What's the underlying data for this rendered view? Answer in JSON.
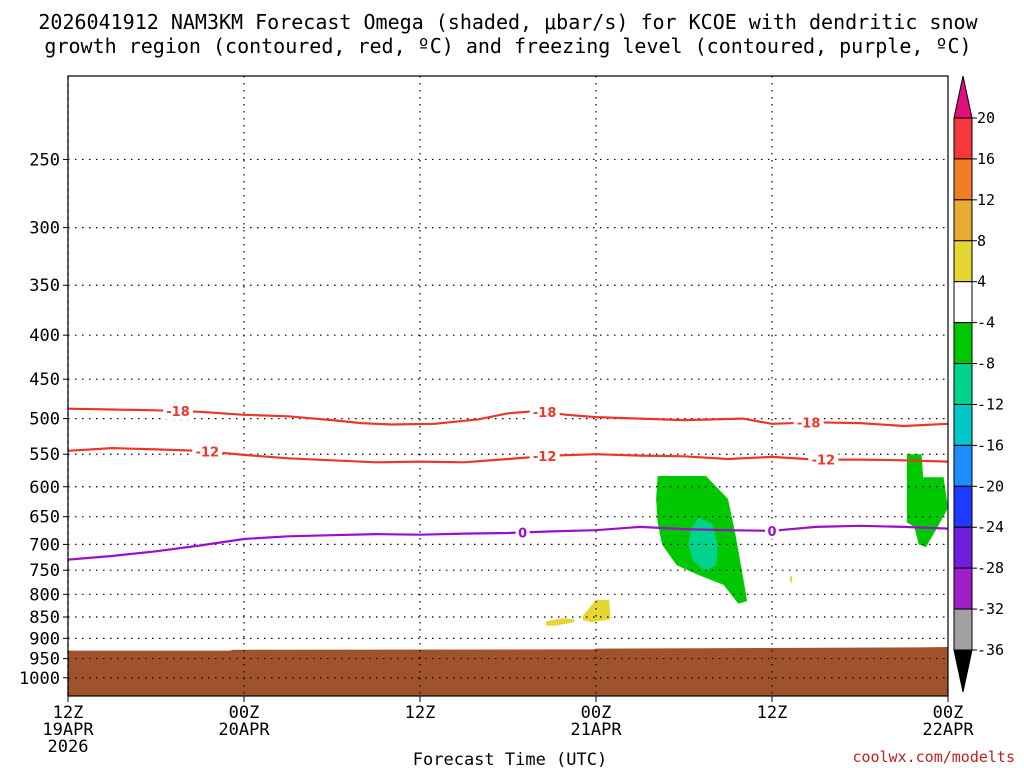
{
  "chart_data": {
    "type": "time-height cross section",
    "title_line1": "2026041912 NAM3KM Forecast Omega (shaded, μbar/s) for KCOE with dendritic snow",
    "title_line2": "growth region (contoured, red, ºC) and freezing level (contoured, purple, ºC)",
    "xlabel": "Forecast Time (UTC)",
    "credit": "coolwx.com/modelts",
    "x_range_hours": [
      0,
      60
    ],
    "x_ticks": [
      {
        "hour": 0,
        "line1": "12Z",
        "line2": "19APR",
        "line3": "2026"
      },
      {
        "hour": 12,
        "line1": "00Z",
        "line2": "20APR",
        "line3": ""
      },
      {
        "hour": 24,
        "line1": "12Z",
        "line2": "",
        "line3": ""
      },
      {
        "hour": 36,
        "line1": "00Z",
        "line2": "21APR",
        "line3": ""
      },
      {
        "hour": 48,
        "line1": "12Z",
        "line2": "",
        "line3": ""
      },
      {
        "hour": 60,
        "line1": "00Z",
        "line2": "22APR",
        "line3": ""
      }
    ],
    "y_range_hpa": [
      200,
      1050
    ],
    "y_ticks": [
      "250",
      "300",
      "350",
      "400",
      "450",
      "500",
      "550",
      "600",
      "650",
      "700",
      "750",
      "800",
      "850",
      "900",
      "950",
      "1000"
    ],
    "colorbar": {
      "labels": [
        "20",
        "16",
        "12",
        "8",
        "4",
        "-4",
        "-8",
        "-12",
        "-16",
        "-20",
        "-24",
        "-28",
        "-32",
        "-36"
      ],
      "colors": [
        "#f5383c",
        "#f07d28",
        "#e6ac34",
        "#e6d634",
        "#ffffff",
        "#00c800",
        "#00d38c",
        "#00c8c8",
        "#1e8cff",
        "#1e3cff",
        "#6e1edc",
        "#a01ec8",
        "#a0a0a0"
      ],
      "top_extend": "#e0107a",
      "bottom_extend": "#000000"
    },
    "contours": [
      {
        "label": "-18",
        "color": "#e8382c",
        "label_hours": [
          7.5,
          32.5,
          50.5
        ],
        "points": [
          [
            0,
            487
          ],
          [
            3,
            488
          ],
          [
            6,
            489
          ],
          [
            9,
            491
          ],
          [
            12,
            495
          ],
          [
            15,
            497
          ],
          [
            18,
            502
          ],
          [
            20,
            506
          ],
          [
            22,
            508
          ],
          [
            25,
            507
          ],
          [
            28,
            501
          ],
          [
            30,
            493
          ],
          [
            32,
            490
          ],
          [
            34,
            495
          ],
          [
            36,
            498
          ],
          [
            39,
            500
          ],
          [
            42,
            502
          ],
          [
            46,
            500
          ],
          [
            48,
            507
          ],
          [
            51,
            505
          ],
          [
            54,
            506
          ],
          [
            57,
            510
          ],
          [
            60,
            507
          ]
        ]
      },
      {
        "label": "-12",
        "color": "#e8382c",
        "label_hours": [
          9.5,
          32.5,
          51.5
        ],
        "points": [
          [
            0,
            545
          ],
          [
            3,
            541
          ],
          [
            6,
            543
          ],
          [
            9,
            545
          ],
          [
            12,
            551
          ],
          [
            15,
            556
          ],
          [
            18,
            559
          ],
          [
            21,
            562
          ],
          [
            24,
            561
          ],
          [
            27,
            562
          ],
          [
            30,
            557
          ],
          [
            33,
            552
          ],
          [
            36,
            550
          ],
          [
            39,
            552
          ],
          [
            42,
            553
          ],
          [
            45,
            557
          ],
          [
            48,
            554
          ],
          [
            51,
            558
          ],
          [
            54,
            558
          ],
          [
            57,
            559
          ],
          [
            60,
            561
          ]
        ]
      },
      {
        "label": "0",
        "color": "#9a10c8",
        "label_hours": [
          31,
          48
        ],
        "points": [
          [
            0,
            729
          ],
          [
            3,
            722
          ],
          [
            6,
            713
          ],
          [
            9,
            702
          ],
          [
            12,
            690
          ],
          [
            15,
            685
          ],
          [
            18,
            683
          ],
          [
            21,
            681
          ],
          [
            24,
            682
          ],
          [
            27,
            680
          ],
          [
            30,
            679
          ],
          [
            33,
            676
          ],
          [
            36,
            674
          ],
          [
            39,
            668
          ],
          [
            42,
            672
          ],
          [
            45,
            674
          ],
          [
            48,
            675
          ],
          [
            51,
            668
          ],
          [
            54,
            666
          ],
          [
            57,
            668
          ],
          [
            60,
            671
          ]
        ]
      }
    ],
    "shaded_regions": [
      {
        "omega": "-4 to -8",
        "color": "#00c800",
        "points": [
          [
            40.2,
            583
          ],
          [
            43.5,
            583
          ],
          [
            45,
            620
          ],
          [
            45.5,
            680
          ],
          [
            46,
            760
          ],
          [
            46.3,
            815
          ],
          [
            45.7,
            820
          ],
          [
            44.7,
            780
          ],
          [
            43,
            760
          ],
          [
            41.5,
            740
          ],
          [
            40.5,
            700
          ],
          [
            40.2,
            660
          ],
          [
            40.1,
            620
          ]
        ]
      },
      {
        "omega": "-8 to -12",
        "color": "#00d38c",
        "points": [
          [
            43,
            652
          ],
          [
            43.9,
            662
          ],
          [
            44.3,
            700
          ],
          [
            44.2,
            740
          ],
          [
            43.4,
            752
          ],
          [
            42.6,
            730
          ],
          [
            42.3,
            700
          ],
          [
            42.5,
            670
          ]
        ]
      },
      {
        "omega": "-4 to -8",
        "color": "#00c800",
        "points": [
          [
            57.2,
            550
          ],
          [
            58.2,
            550
          ],
          [
            58.3,
            585
          ],
          [
            59.7,
            585
          ],
          [
            60,
            635
          ],
          [
            59.4,
            663
          ],
          [
            58.5,
            705
          ],
          [
            58,
            700
          ],
          [
            57.7,
            668
          ],
          [
            57.2,
            660
          ]
        ]
      },
      {
        "omega": "4 to 8",
        "color": "#e6d634",
        "points": [
          [
            32.6,
            860
          ],
          [
            33.7,
            853
          ],
          [
            34.5,
            855
          ],
          [
            34.5,
            862
          ],
          [
            33.2,
            870
          ],
          [
            32.6,
            870
          ]
        ]
      },
      {
        "omega": "4 to 8",
        "color": "#e6d634",
        "points": [
          [
            35.1,
            847
          ],
          [
            36,
            812
          ],
          [
            36.9,
            812
          ],
          [
            37,
            855
          ],
          [
            35.7,
            862
          ],
          [
            35.1,
            857
          ]
        ]
      },
      {
        "omega": "4 to 8",
        "color": "#e6d634",
        "points": [
          [
            49.2,
            765
          ],
          [
            49.3,
            760
          ],
          [
            49.4,
            768
          ],
          [
            49.3,
            778
          ]
        ]
      }
    ],
    "terrain": {
      "color": "#a0522d",
      "points": [
        [
          0,
          930
        ],
        [
          11,
          930
        ],
        [
          11.3,
          928
        ],
        [
          35.8,
          927
        ],
        [
          36,
          925
        ],
        [
          58,
          922
        ],
        [
          60,
          921
        ]
      ]
    }
  }
}
